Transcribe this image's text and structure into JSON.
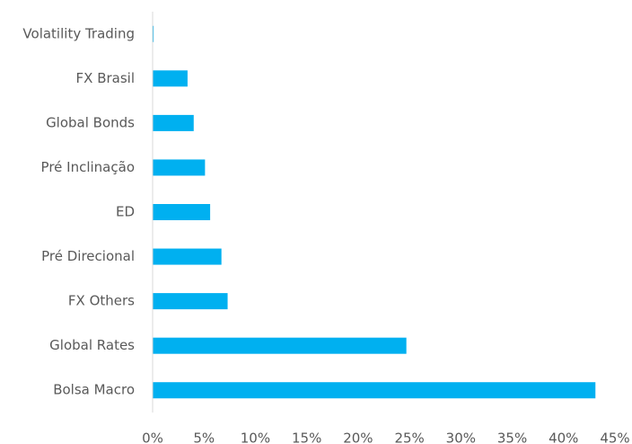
{
  "chart_data": {
    "type": "barh",
    "categories": [
      "Volatility Trading",
      "FX Brasil",
      "Global Bonds",
      "Pré Inclinação",
      "ED",
      "Pré Direcional",
      "FX Others",
      "Global Rates",
      "Bolsa Macro"
    ],
    "values": [
      0.1,
      3.4,
      4.0,
      5.1,
      5.6,
      6.7,
      7.3,
      24.7,
      43.1
    ],
    "color": "#00b0f0",
    "xlim": [
      0,
      45
    ],
    "xticks": [
      {
        "value": 0,
        "label": "0%"
      },
      {
        "value": 5,
        "label": "5%"
      },
      {
        "value": 10,
        "label": "10%"
      },
      {
        "value": 15,
        "label": "15%"
      },
      {
        "value": 20,
        "label": "20%"
      },
      {
        "value": 25,
        "label": "25%"
      },
      {
        "value": 30,
        "label": "30%"
      },
      {
        "value": 35,
        "label": "35%"
      },
      {
        "value": 40,
        "label": "40%"
      },
      {
        "value": 45,
        "label": "45%"
      }
    ],
    "grid": false
  }
}
